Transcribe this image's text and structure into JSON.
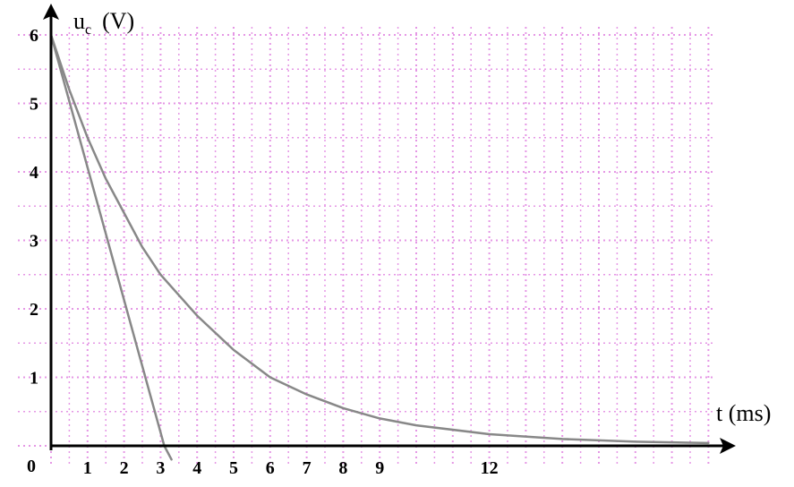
{
  "chart_data": {
    "type": "line",
    "ylabel_main": "u",
    "ylabel_sub": "c",
    "ylabel_unit": "(V)",
    "xlabel": "t (ms)",
    "xlim": [
      0,
      18
    ],
    "ylim": [
      0,
      6
    ],
    "grid": true,
    "grid_color": "#e597e5",
    "origin_label": "0",
    "x_tick_labels": [
      {
        "value": 1,
        "label": "1"
      },
      {
        "value": 2,
        "label": "2"
      },
      {
        "value": 3,
        "label": "3"
      },
      {
        "value": 4,
        "label": "4"
      },
      {
        "value": 5,
        "label": "5"
      },
      {
        "value": 6,
        "label": "6"
      },
      {
        "value": 7,
        "label": "7"
      },
      {
        "value": 8,
        "label": "8"
      },
      {
        "value": 9,
        "label": "9"
      },
      {
        "value": 12,
        "label": "12"
      }
    ],
    "y_tick_labels": [
      {
        "value": 1,
        "label": "1"
      },
      {
        "value": 2,
        "label": "2"
      },
      {
        "value": 3,
        "label": "3"
      },
      {
        "value": 4,
        "label": "4"
      },
      {
        "value": 5,
        "label": "5"
      },
      {
        "value": 6,
        "label": "6"
      }
    ],
    "series": [
      {
        "kind": "exponential-decay",
        "color": "#888888",
        "points": [
          [
            0,
            6.0
          ],
          [
            0.5,
            5.2
          ],
          [
            1,
            4.5
          ],
          [
            1.5,
            3.9
          ],
          [
            2,
            3.4
          ],
          [
            2.5,
            2.9
          ],
          [
            3,
            2.5
          ],
          [
            4,
            1.9
          ],
          [
            5,
            1.4
          ],
          [
            6,
            1.0
          ],
          [
            7,
            0.75
          ],
          [
            8,
            0.55
          ],
          [
            9,
            0.4
          ],
          [
            10,
            0.3
          ],
          [
            12,
            0.17
          ],
          [
            14,
            0.1
          ],
          [
            16,
            0.06
          ],
          [
            18,
            0.04
          ]
        ]
      },
      {
        "kind": "tangent-at-origin",
        "color": "#888888",
        "points": [
          [
            0,
            6.0
          ],
          [
            3.1,
            0
          ],
          [
            3.3,
            -0.2
          ]
        ]
      }
    ]
  }
}
